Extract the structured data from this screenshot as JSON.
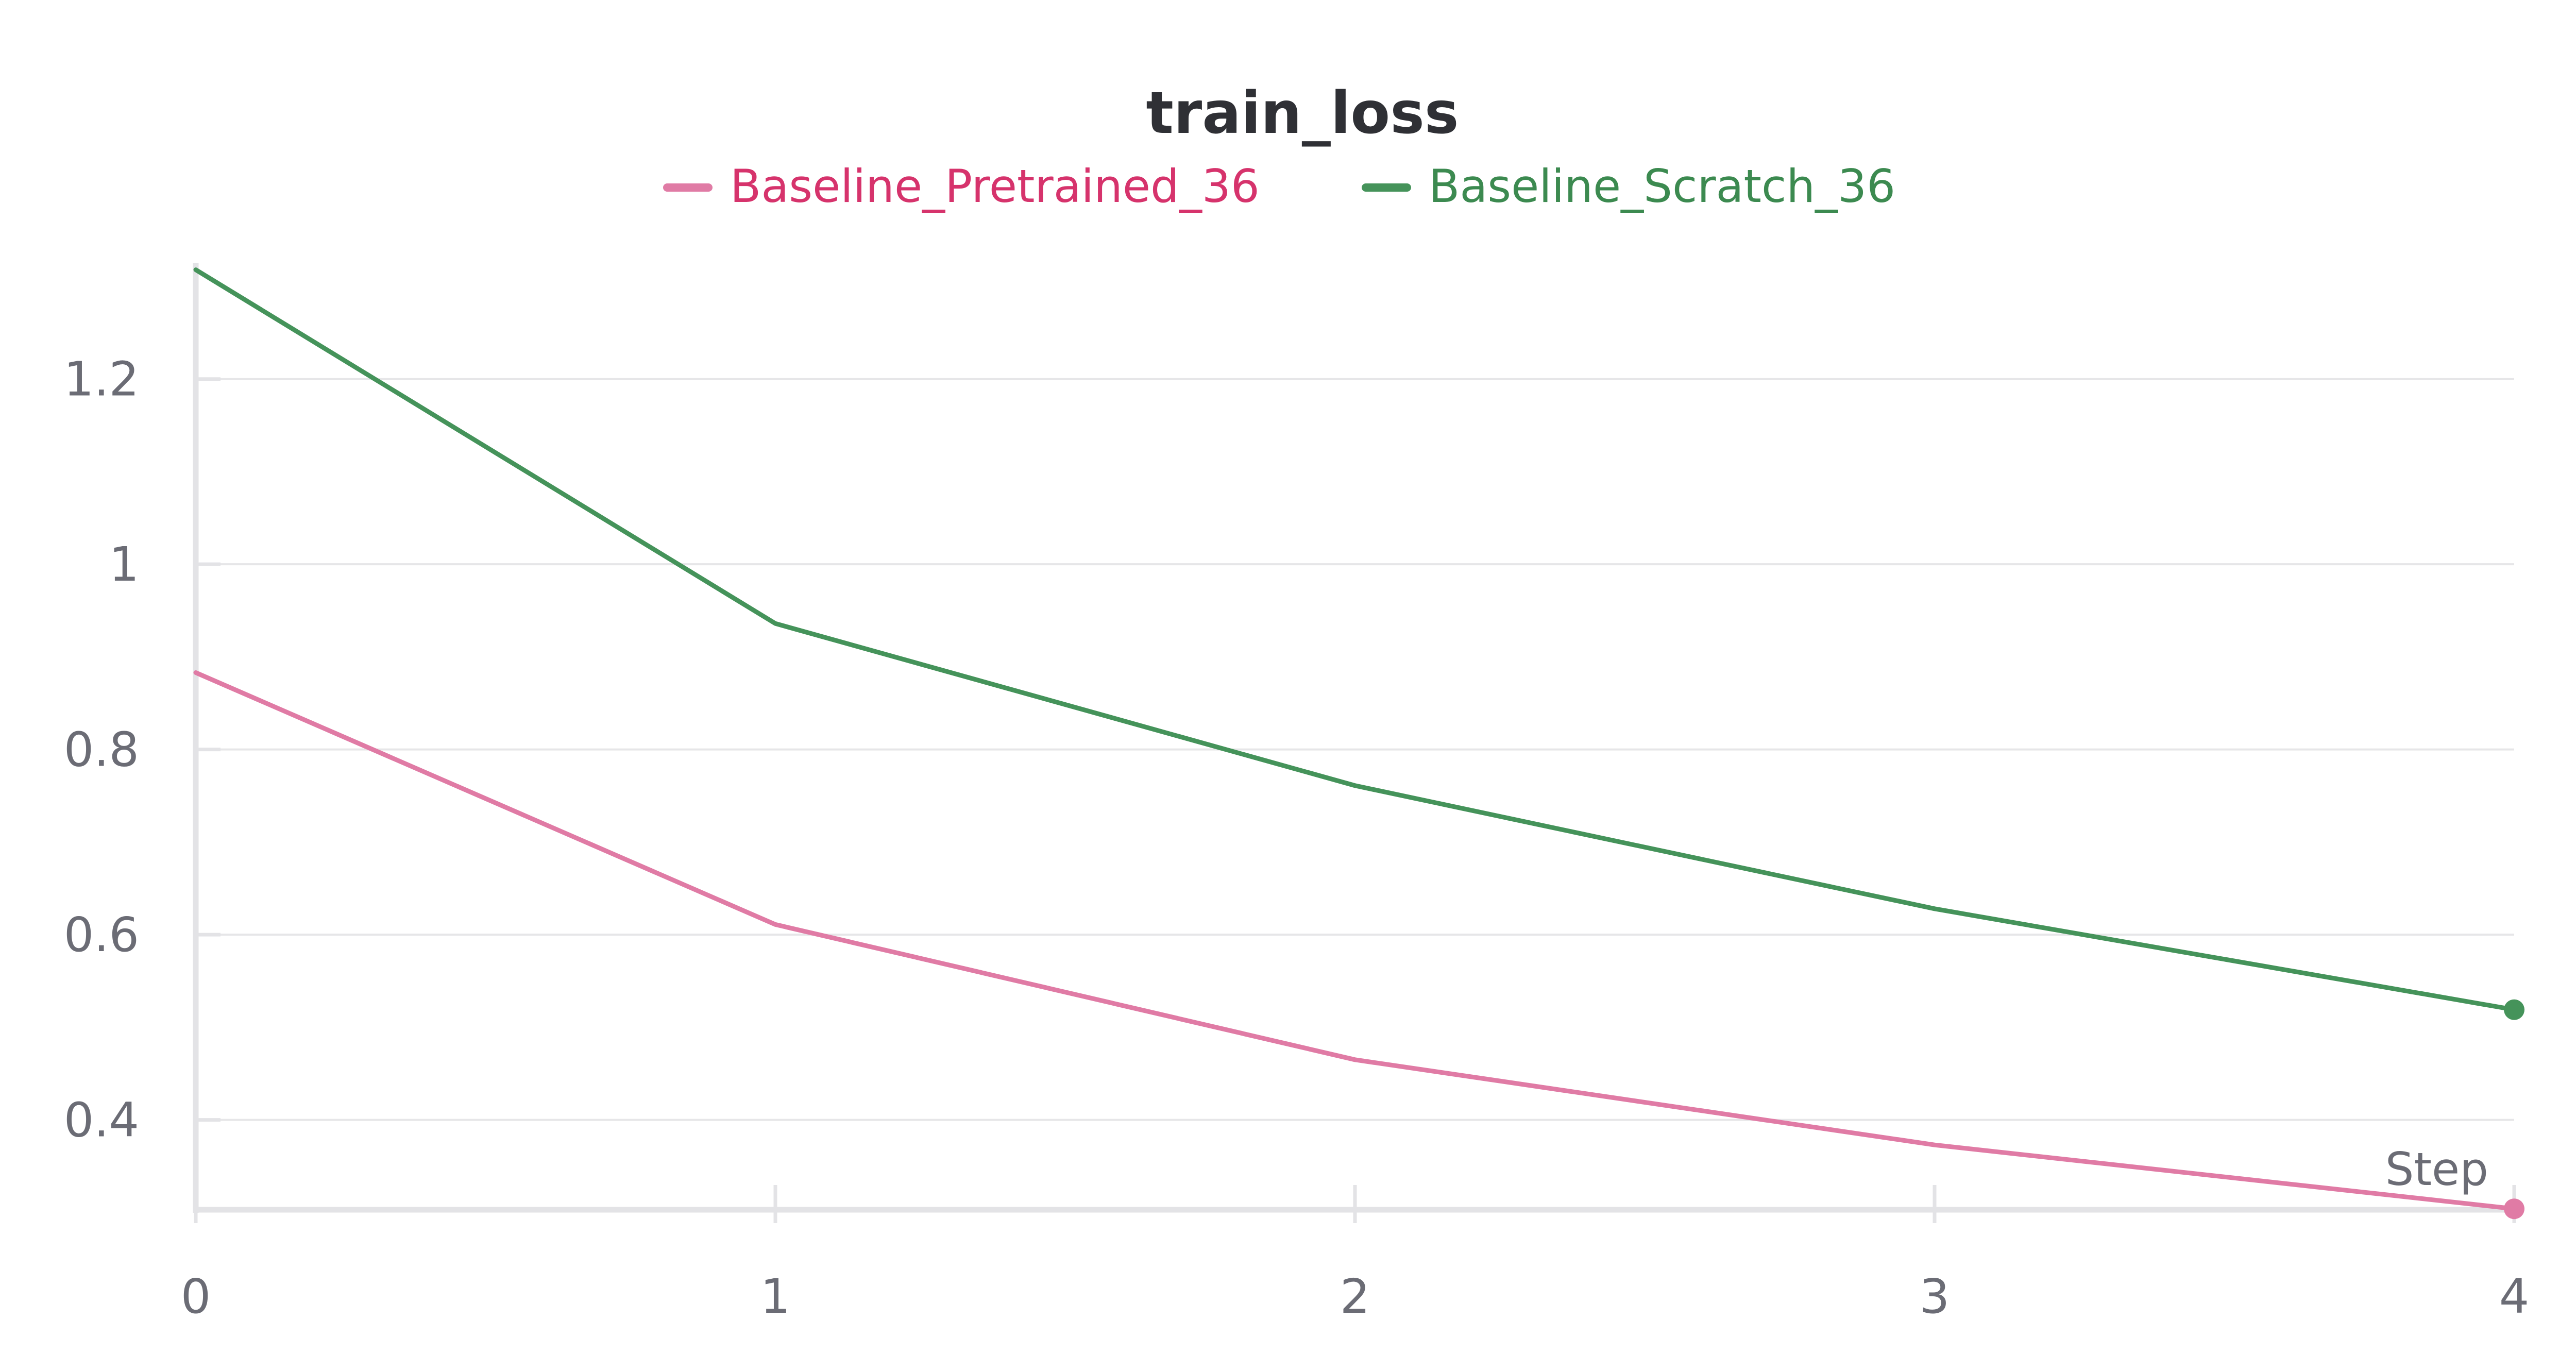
{
  "chart_data": {
    "type": "line",
    "title": "train_loss",
    "xlabel": "Step",
    "ylabel": "",
    "x": [
      0,
      1,
      2,
      3,
      4
    ],
    "xlim": [
      0,
      4
    ],
    "ylim": [
      0.303,
      1.32
    ],
    "x_ticks": [
      "0",
      "1",
      "2",
      "3",
      "4"
    ],
    "y_ticks": [
      {
        "value": 0.4,
        "label": "0.4"
      },
      {
        "value": 0.6,
        "label": "0.6"
      },
      {
        "value": 0.8,
        "label": "0.8"
      },
      {
        "value": 1.0,
        "label": "1"
      },
      {
        "value": 1.2,
        "label": "1.2"
      }
    ],
    "grid": true,
    "legend_position": "top-center",
    "series": [
      {
        "name": "Baseline_Pretrained_36",
        "color": "#e07ba5",
        "label_color": "#d6336c",
        "values": [
          0.883,
          0.611,
          0.465,
          0.373,
          0.304
        ]
      },
      {
        "name": "Baseline_Scratch_36",
        "color": "#45935a",
        "label_color": "#3c8a50",
        "values": [
          1.318,
          0.936,
          0.761,
          0.628,
          0.519
        ]
      }
    ]
  }
}
